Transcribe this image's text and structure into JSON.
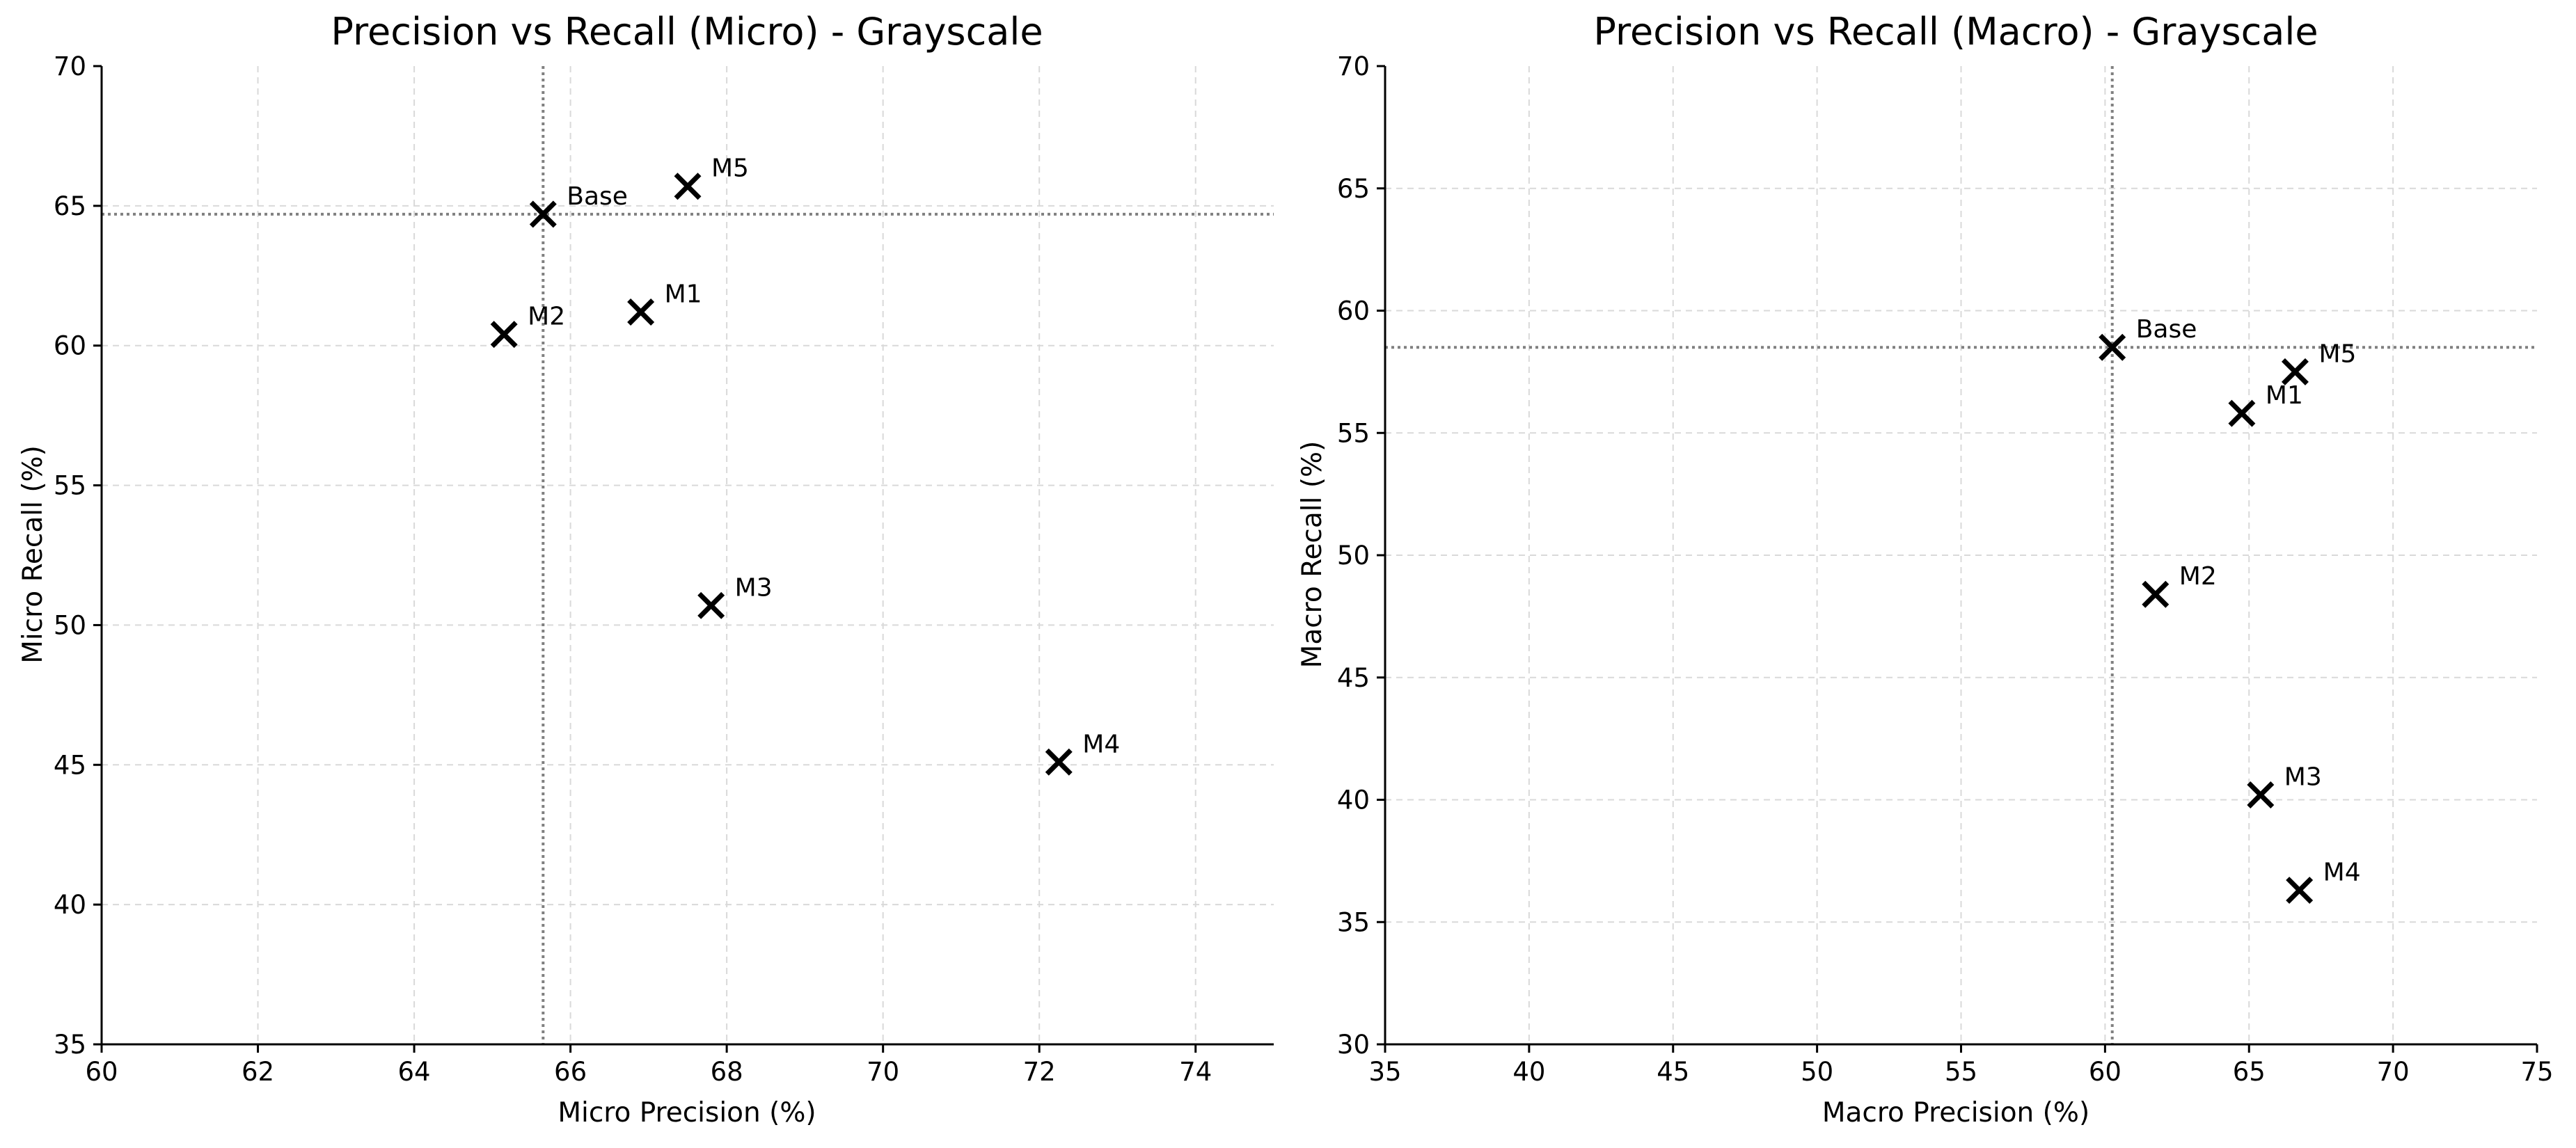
{
  "chart_data": [
    {
      "type": "scatter",
      "title": "Precision vs Recall (Micro) - Grayscale",
      "xlabel": "Micro Precision (%)",
      "ylabel": "Micro Recall (%)",
      "xlim": [
        60,
        75
      ],
      "ylim": [
        35,
        70
      ],
      "xticks": [
        60,
        62,
        64,
        66,
        68,
        70,
        72,
        74
      ],
      "yticks": [
        35,
        40,
        45,
        50,
        55,
        60,
        65,
        70
      ],
      "grid": true,
      "marker": "x",
      "color": "#000000",
      "reference_lines": {
        "x": 65.65,
        "y": 64.7,
        "color": "#808080",
        "style": "dotted"
      },
      "points": [
        {
          "label": "Base",
          "x": 65.65,
          "y": 64.7
        },
        {
          "label": "M1",
          "x": 66.9,
          "y": 61.2
        },
        {
          "label": "M2",
          "x": 65.15,
          "y": 60.4
        },
        {
          "label": "M3",
          "x": 67.8,
          "y": 50.7
        },
        {
          "label": "M4",
          "x": 72.25,
          "y": 45.1
        },
        {
          "label": "M5",
          "x": 67.5,
          "y": 65.7
        }
      ]
    },
    {
      "type": "scatter",
      "title": "Precision vs Recall (Macro) - Grayscale",
      "xlabel": "Macro Precision (%)",
      "ylabel": "Macro Recall (%)",
      "xlim": [
        35,
        75
      ],
      "ylim": [
        30,
        70
      ],
      "xticks": [
        35,
        40,
        45,
        50,
        55,
        60,
        65,
        70,
        75
      ],
      "yticks": [
        30,
        35,
        40,
        45,
        50,
        55,
        60,
        65,
        70
      ],
      "grid": true,
      "marker": "x",
      "color": "#000000",
      "reference_lines": {
        "x": 60.25,
        "y": 58.5,
        "color": "#808080",
        "style": "dotted"
      },
      "points": [
        {
          "label": "Base",
          "x": 60.25,
          "y": 58.5
        },
        {
          "label": "M1",
          "x": 64.75,
          "y": 55.8
        },
        {
          "label": "M2",
          "x": 61.75,
          "y": 48.4
        },
        {
          "label": "M3",
          "x": 65.4,
          "y": 40.2
        },
        {
          "label": "M4",
          "x": 66.75,
          "y": 36.3
        },
        {
          "label": "M5",
          "x": 66.6,
          "y": 57.5
        }
      ]
    }
  ]
}
